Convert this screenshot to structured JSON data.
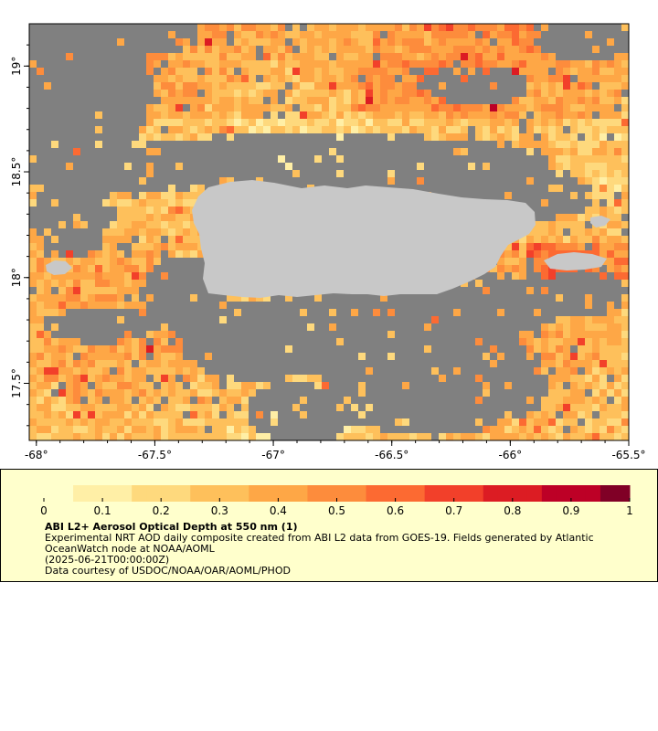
{
  "map": {
    "x_tick_labels": [
      "-68°",
      "-67.5°",
      "-67°",
      "-66.5°",
      "-66°",
      "-65.5°"
    ],
    "x_tick_values": [
      -68,
      -67.5,
      -67,
      -66.5,
      -66,
      -65.5
    ],
    "y_tick_labels": [
      "19°",
      "18.5°",
      "18°",
      "17.5°"
    ],
    "y_tick_values": [
      19,
      18.5,
      18,
      17.5
    ],
    "lon_range": [
      -68.03,
      -65.5
    ],
    "lat_range": [
      17.23,
      19.2
    ],
    "colors": {
      "land": "#c8c8c8",
      "no_data": "#808080",
      "frame": "#000000"
    },
    "features": [
      "puerto-rico",
      "vieques",
      "culebra",
      "mona-island"
    ]
  },
  "colorbar": {
    "tick_labels": [
      "0",
      "0.1",
      "0.2",
      "0.3",
      "0.4",
      "0.5",
      "0.6",
      "0.7",
      "0.8",
      "0.9",
      "1"
    ],
    "range": [
      0,
      1
    ],
    "colors": [
      "#ffffcc",
      "#ffefa6",
      "#fed97d",
      "#fec05b",
      "#fea746",
      "#fd8c3c",
      "#fc6a32",
      "#f2402a",
      "#dc1c23",
      "#bd0026",
      "#800026"
    ]
  },
  "legend": {
    "title": "ABI L2+ Aerosol Optical Depth at 550 nm (1)",
    "description_line1": "Experimental NRT AOD daily composite created from ABI L2 data from GOES-19. Fields generated by Atlantic",
    "description_line2": "OceanWatch node at NOAA/AOML",
    "timestamp": "(2025-06-21T00:00:00Z)",
    "credit": "Data courtesy of USDOC/NOAA/OAR/AOML/PHOD"
  }
}
